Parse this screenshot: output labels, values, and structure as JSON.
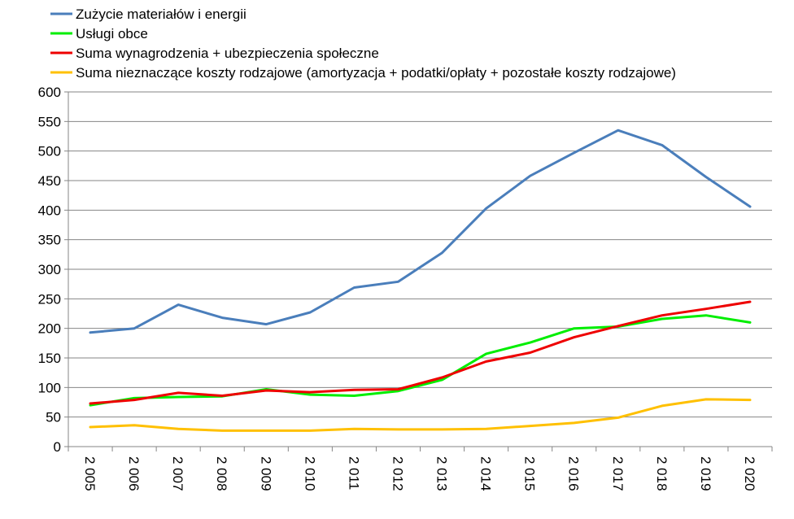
{
  "chart_data": {
    "type": "line",
    "title": "",
    "xlabel": "",
    "ylabel": "",
    "categories": [
      "2 005",
      "2 006",
      "2 007",
      "2 008",
      "2 009",
      "2 010",
      "2 011",
      "2 012",
      "2 013",
      "2 014",
      "2 015",
      "2 016",
      "2 017",
      "2 018",
      "2 019",
      "2 020"
    ],
    "ylim": [
      0,
      600
    ],
    "yticks": [
      0,
      50,
      100,
      150,
      200,
      250,
      300,
      350,
      400,
      450,
      500,
      550,
      600
    ],
    "grid": true,
    "legend_position": "top-left",
    "series": [
      {
        "name": "Zużycie materiałów i energii",
        "color": "#4a7ebb",
        "values": [
          193,
          200,
          240,
          218,
          207,
          227,
          269,
          279,
          328,
          403,
          458,
          497,
          535,
          510,
          456,
          406
        ]
      },
      {
        "name": "Usługi obce",
        "color": "#00ee00",
        "values": [
          70,
          82,
          84,
          85,
          97,
          88,
          86,
          94,
          113,
          157,
          176,
          200,
          203,
          216,
          222,
          210
        ]
      },
      {
        "name": "Suma wynagrodzenia + ubezpieczenia społeczne",
        "color": "#ee0000",
        "values": [
          73,
          79,
          91,
          86,
          95,
          92,
          96,
          97,
          117,
          144,
          159,
          185,
          204,
          222,
          233,
          245
        ]
      },
      {
        "name": "Suma nieznaczące koszty rodzajowe (amortyzacja + podatki/opłaty + pozostałe koszty rodzajowe)",
        "color": "#ffc000",
        "values": [
          33,
          36,
          30,
          27,
          27,
          27,
          30,
          29,
          29,
          30,
          35,
          40,
          49,
          69,
          80,
          79
        ]
      }
    ]
  }
}
